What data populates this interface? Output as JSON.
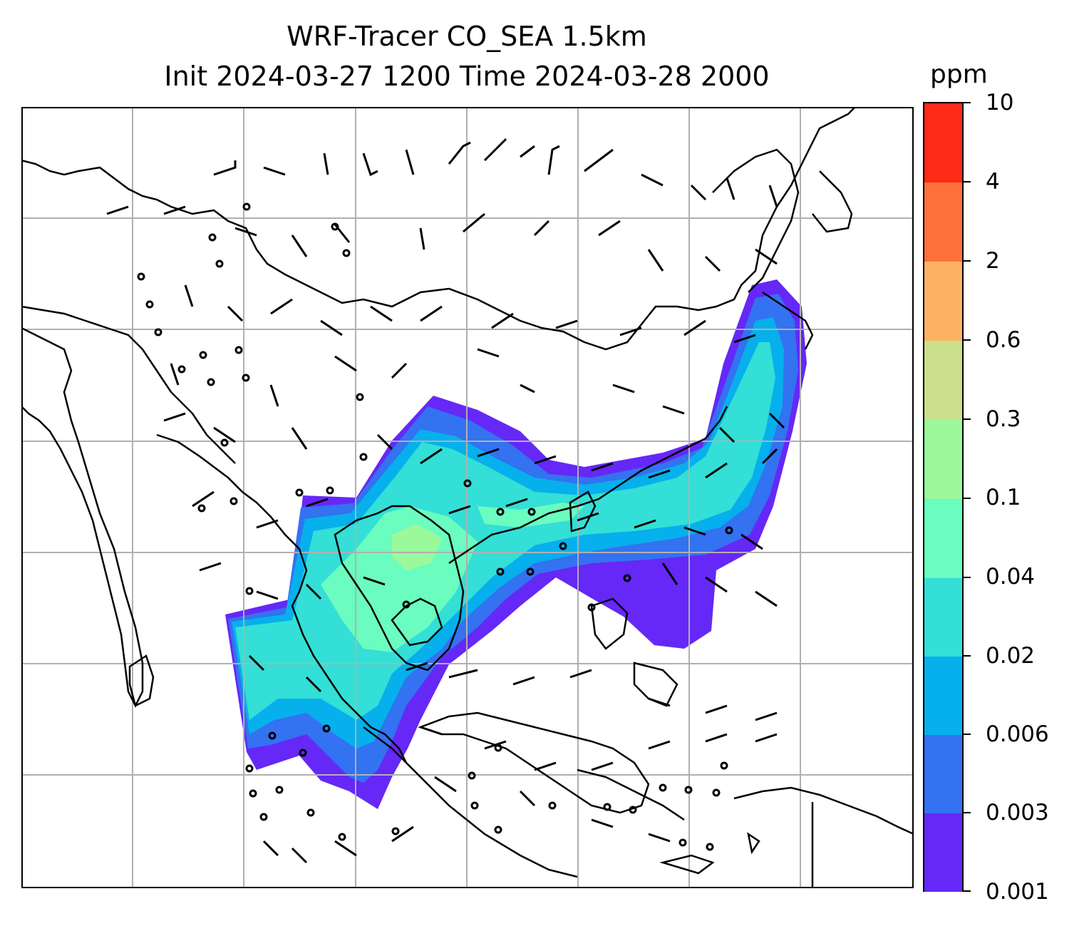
{
  "title_line1": "WRF-Tracer CO_SEA 1.5km",
  "title_line2": "Init 2024-03-27 1200 Time 2024-03-28 2000",
  "colorbar": {
    "unit": "ppm",
    "levels": [
      {
        "label": "0.001",
        "color": "#6528f7"
      },
      {
        "label": "0.003",
        "color": "#3372f1"
      },
      {
        "label": "0.006",
        "color": "#06b0ec"
      },
      {
        "label": "0.02",
        "color": "#33dfd6"
      },
      {
        "label": "0.04",
        "color": "#6bfcbf"
      },
      {
        "label": "0.1",
        "color": "#9bf99c"
      },
      {
        "label": "0.3",
        "color": "#cbe08a"
      },
      {
        "label": "0.6",
        "color": "#feb264"
      },
      {
        "label": "2",
        "color": "#fe713b"
      },
      {
        "label": "4",
        "color": "#fc2a16"
      },
      {
        "label": "10",
        "color": ""
      }
    ]
  }
}
